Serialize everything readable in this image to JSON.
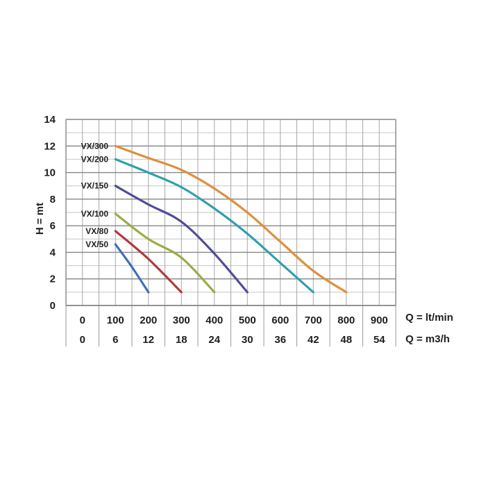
{
  "chart_data": {
    "type": "line",
    "title": "",
    "ylabel": "H = mt",
    "ylim": [
      0,
      14
    ],
    "y_ticks": [
      0,
      2,
      4,
      6,
      8,
      10,
      12,
      14
    ],
    "xlim_lt_min": [
      -50,
      950
    ],
    "grid_on": true,
    "grid": {
      "x_step_lt_min": 50,
      "y_step_mt": 1
    },
    "x_tick_rows": [
      {
        "unit_label": "Q = lt/min",
        "ticks": [
          0,
          100,
          200,
          300,
          400,
          500,
          600,
          700,
          800,
          900
        ]
      },
      {
        "unit_label": "Q = m3/h",
        "ticks": [
          0,
          6,
          12,
          18,
          24,
          30,
          36,
          42,
          48,
          54
        ]
      }
    ],
    "legend_position": "labels-left-of-curve-start",
    "series": [
      {
        "name": "VX/300",
        "color": "#DE8F3E",
        "points_q_h": [
          [
            100,
            12.0
          ],
          [
            200,
            11.1
          ],
          [
            300,
            10.2
          ],
          [
            400,
            8.8
          ],
          [
            500,
            7.0
          ],
          [
            600,
            4.8
          ],
          [
            700,
            2.6
          ],
          [
            800,
            1.0
          ]
        ]
      },
      {
        "name": "VX/200",
        "color": "#2FA0AD",
        "points_q_h": [
          [
            100,
            11.0
          ],
          [
            200,
            10.0
          ],
          [
            300,
            8.9
          ],
          [
            400,
            7.3
          ],
          [
            500,
            5.4
          ],
          [
            600,
            3.2
          ],
          [
            700,
            1.0
          ]
        ]
      },
      {
        "name": "VX/150",
        "color": "#4F4D97",
        "points_q_h": [
          [
            100,
            9.0
          ],
          [
            200,
            7.6
          ],
          [
            300,
            6.3
          ],
          [
            400,
            3.9
          ],
          [
            500,
            1.0
          ]
        ]
      },
      {
        "name": "VX/100",
        "color": "#98AD45",
        "points_q_h": [
          [
            100,
            6.9
          ],
          [
            200,
            5.0
          ],
          [
            300,
            3.6
          ],
          [
            400,
            1.0
          ]
        ]
      },
      {
        "name": "VX/80",
        "color": "#AE3B3C",
        "points_q_h": [
          [
            100,
            5.6
          ],
          [
            200,
            3.5
          ],
          [
            300,
            1.0
          ]
        ]
      },
      {
        "name": "VX/50",
        "color": "#3F70B4",
        "points_q_h": [
          [
            100,
            4.6
          ],
          [
            150,
            2.9
          ],
          [
            200,
            1.0
          ]
        ]
      }
    ]
  },
  "colors": {
    "background": "#ffffff",
    "grid_major": "#858585",
    "grid_minor": "#c6c6c6",
    "grid_vertical": "#a6a6a6",
    "axis_bottom": "#6f6f6f",
    "table_divider": "#9a9a9a",
    "axis_text": "#1e1e1e"
  }
}
